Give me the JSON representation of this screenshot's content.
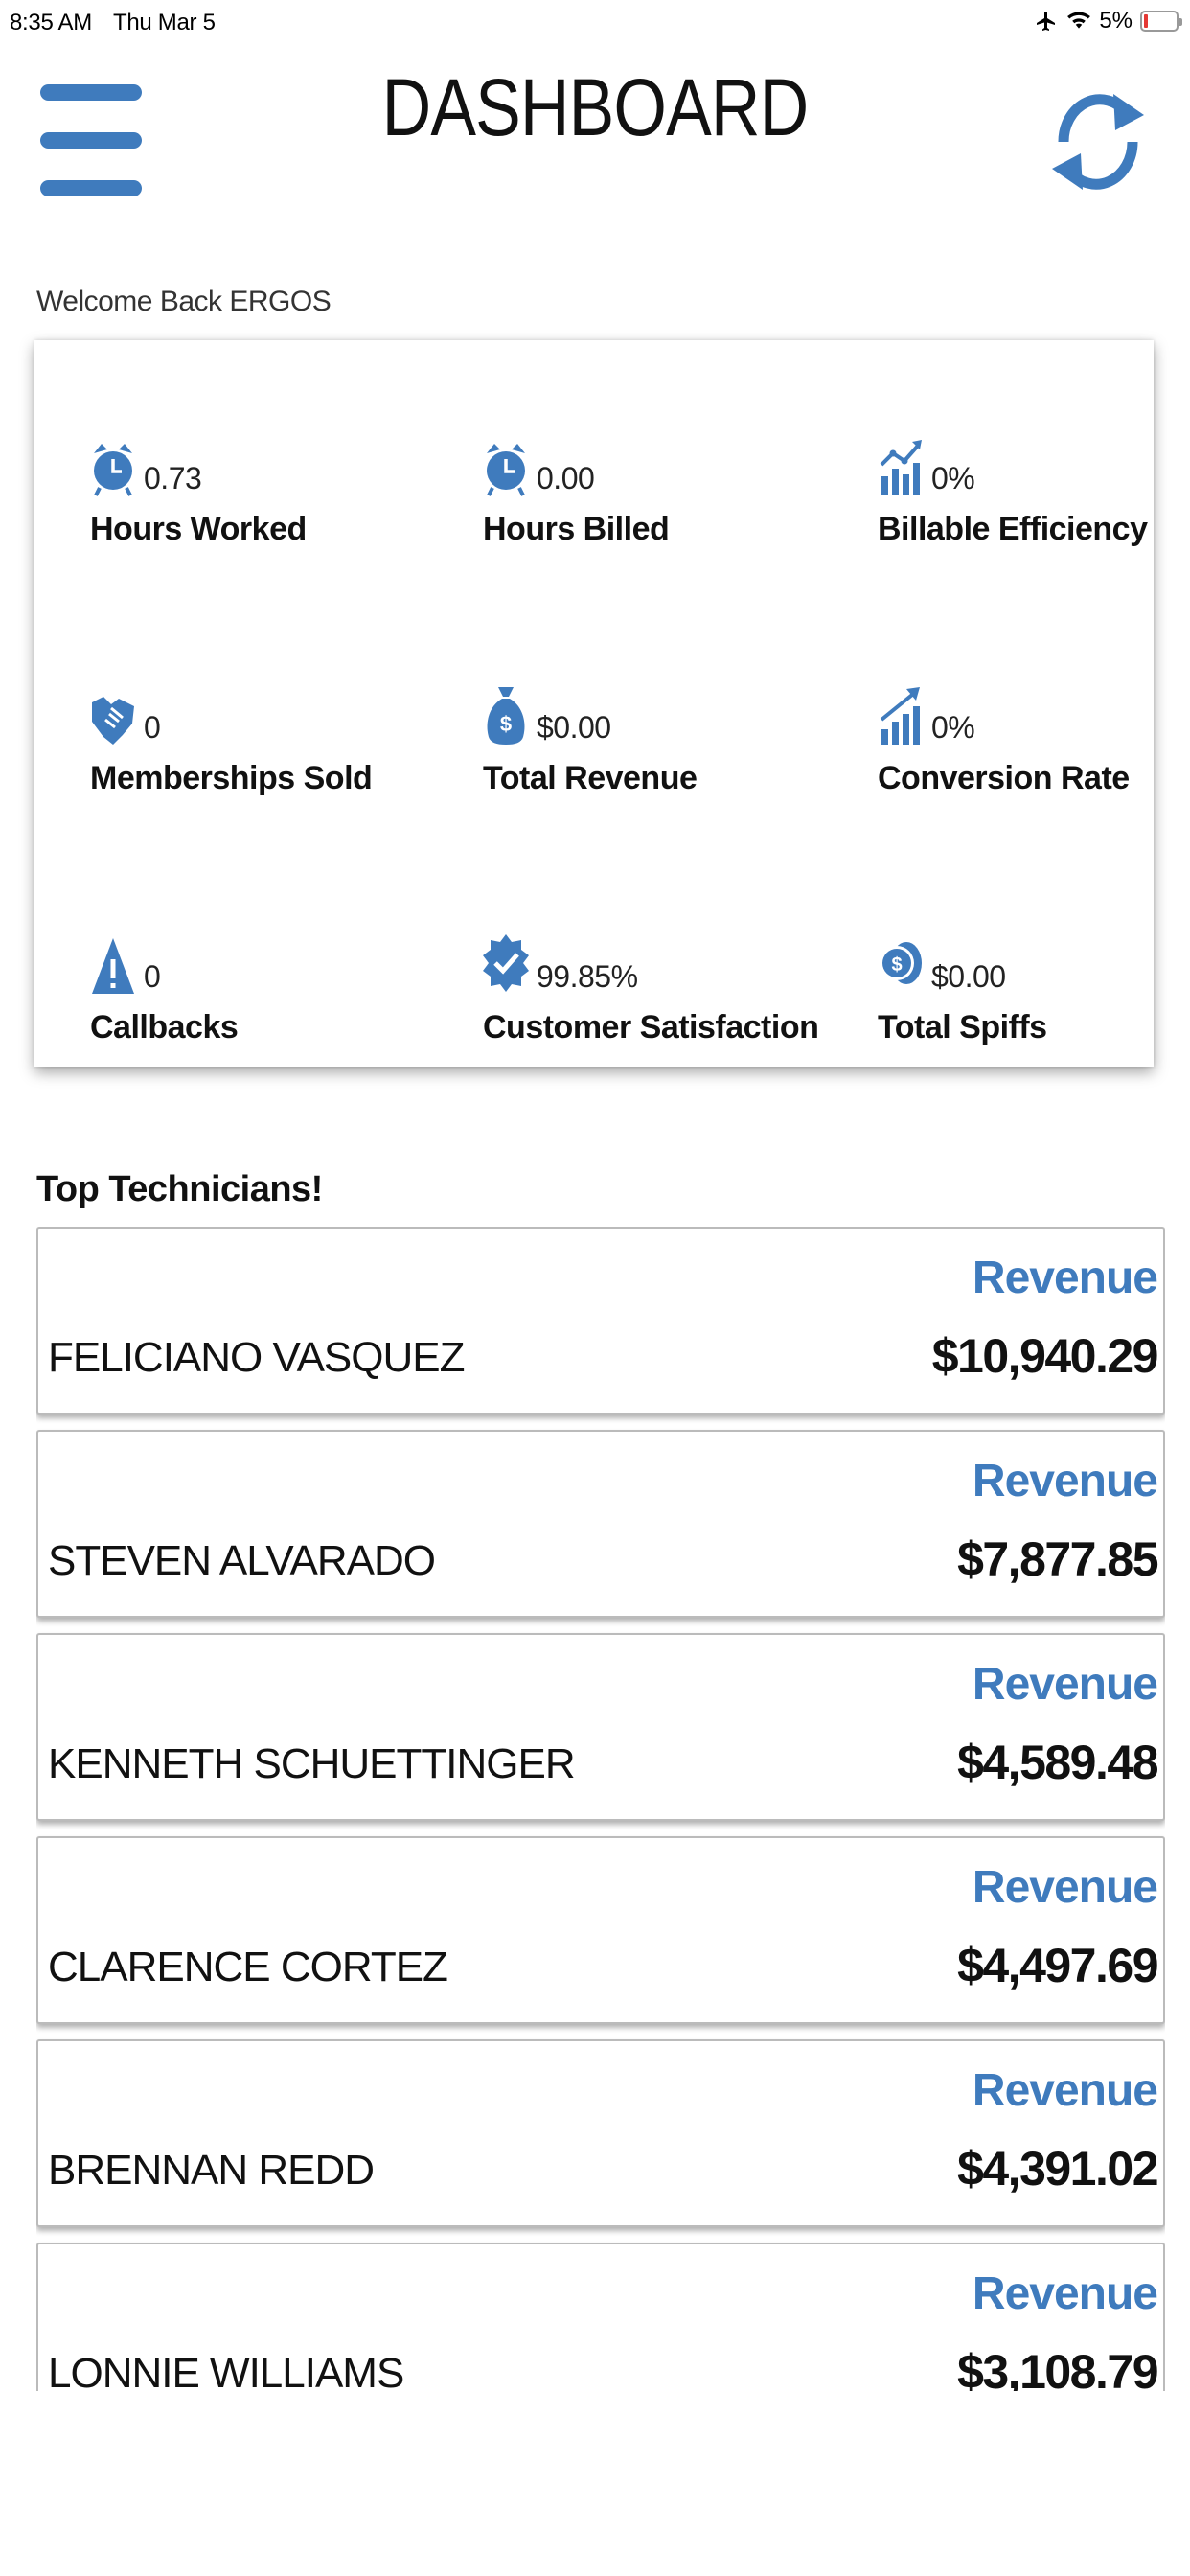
{
  "status_bar": {
    "time": "8:35 AM",
    "date": "Thu Mar 5",
    "battery": "5%"
  },
  "header": {
    "title": "DASHBOARD",
    "menu_icon": "hamburger-menu-icon",
    "refresh_icon": "refresh-icon"
  },
  "welcome": "Welcome Back ERGOS",
  "accent_color": "#3f7bbd",
  "stats": {
    "hours_worked": {
      "value": "0.73",
      "label": "Hours Worked",
      "icon": "alarm-clock-icon"
    },
    "hours_billed": {
      "value": "0.00",
      "label": "Hours Billed",
      "icon": "alarm-clock-icon"
    },
    "billable_efficiency": {
      "value": "0%",
      "label": "Billable Efficiency",
      "icon": "chart-trend-icon"
    },
    "memberships_sold": {
      "value": "0",
      "label": "Memberships Sold",
      "icon": "handshake-icon"
    },
    "total_revenue": {
      "value": "$0.00",
      "label": "Total Revenue",
      "icon": "money-bag-icon"
    },
    "conversion_rate": {
      "value": "0%",
      "label": "Conversion Rate",
      "icon": "growth-chart-icon"
    },
    "callbacks": {
      "value": "0",
      "label": "Callbacks",
      "icon": "warning-icon"
    },
    "customer_satisfaction": {
      "value": "99.85%",
      "label": "Customer Satisfaction",
      "icon": "verified-badge-icon"
    },
    "total_spiffs": {
      "value": "$0.00",
      "label": "Total Spiffs",
      "icon": "coins-icon"
    }
  },
  "top_technicians": {
    "title": "Top Technicians!",
    "items": [
      {
        "name": "FELICIANO VASQUEZ",
        "metric": "Revenue",
        "value": "$10,940.29"
      },
      {
        "name": "STEVEN ALVARADO",
        "metric": "Revenue",
        "value": "$7,877.85"
      },
      {
        "name": "KENNETH SCHUETTINGER",
        "metric": "Revenue",
        "value": "$4,589.48"
      },
      {
        "name": "CLARENCE CORTEZ",
        "metric": "Revenue",
        "value": "$4,497.69"
      },
      {
        "name": "BRENNAN REDD",
        "metric": "Revenue",
        "value": "$4,391.02"
      },
      {
        "name": "LONNIE WILLIAMS",
        "metric": "Revenue",
        "value": "$3,108.79"
      }
    ]
  }
}
